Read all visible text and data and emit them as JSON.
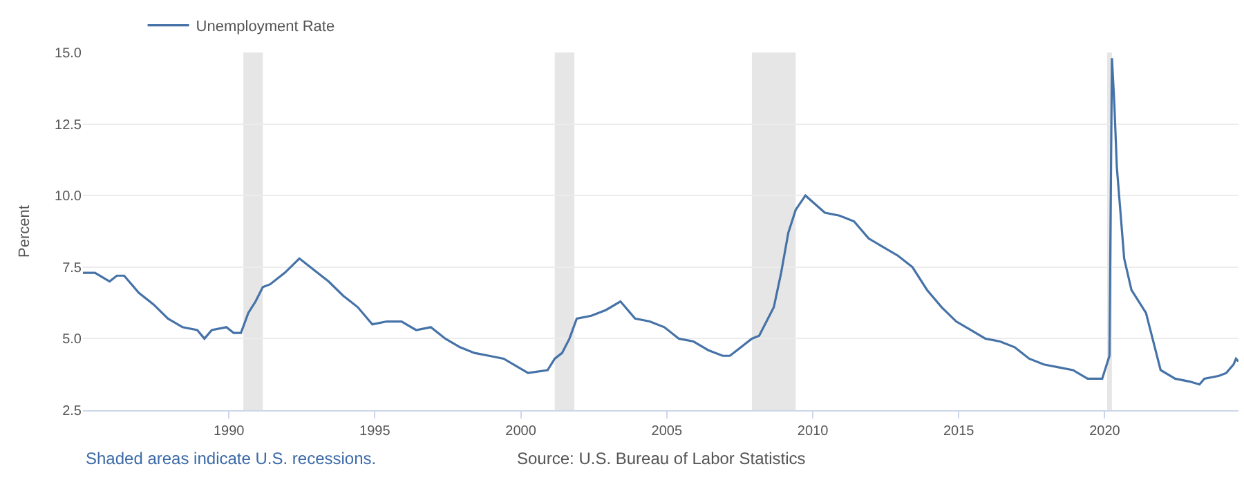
{
  "chart_data": {
    "type": "line",
    "ylabel": "Percent",
    "legend": "top left",
    "grid": "y",
    "marker": "none",
    "line_style": "solid",
    "xlim": [
      "1985-01",
      "2024-08"
    ],
    "xticks": [
      "1990",
      "1995",
      "2000",
      "2005",
      "2010",
      "2015",
      "2020"
    ],
    "ylim": [
      2.5,
      15.0
    ],
    "yticks": [
      {
        "value": 2.5,
        "label": "2.5"
      },
      {
        "value": 5.0,
        "label": "5.0"
      },
      {
        "value": 7.5,
        "label": "7.5"
      },
      {
        "value": 10.0,
        "label": "10.0"
      },
      {
        "value": 12.5,
        "label": "12.5"
      },
      {
        "value": 15.0,
        "label": "15.0"
      }
    ],
    "x": [
      "1985-01",
      "1985-06",
      "1985-12",
      "1986-03",
      "1986-06",
      "1986-12",
      "1987-06",
      "1987-12",
      "1988-06",
      "1988-12",
      "1989-03",
      "1989-06",
      "1989-12",
      "1990-03",
      "1990-06",
      "1990-09",
      "1990-12",
      "1991-03",
      "1991-06",
      "1991-12",
      "1992-06",
      "1992-12",
      "1993-06",
      "1993-12",
      "1994-06",
      "1994-12",
      "1995-06",
      "1995-12",
      "1996-06",
      "1996-12",
      "1997-06",
      "1997-12",
      "1998-06",
      "1998-12",
      "1999-06",
      "1999-12",
      "2000-04",
      "2000-12",
      "2001-03",
      "2001-06",
      "2001-09",
      "2001-12",
      "2002-06",
      "2002-12",
      "2003-06",
      "2003-12",
      "2004-06",
      "2004-12",
      "2005-06",
      "2005-12",
      "2006-06",
      "2006-12",
      "2007-03",
      "2007-06",
      "2007-12",
      "2008-03",
      "2008-06",
      "2008-09",
      "2008-12",
      "2009-03",
      "2009-06",
      "2009-10",
      "2010-06",
      "2010-12",
      "2011-06",
      "2011-12",
      "2012-06",
      "2012-12",
      "2013-06",
      "2013-12",
      "2014-06",
      "2014-12",
      "2015-06",
      "2015-12",
      "2016-06",
      "2016-12",
      "2017-06",
      "2017-12",
      "2018-06",
      "2018-12",
      "2019-06",
      "2019-12",
      "2020-03",
      "2020-04",
      "2020-05",
      "2020-06",
      "2020-09",
      "2020-12",
      "2021-06",
      "2021-12",
      "2022-06",
      "2022-12",
      "2023-04",
      "2023-06",
      "2023-12",
      "2024-03",
      "2024-06",
      "2024-07",
      "2024-08"
    ],
    "series": [
      {
        "name": "Unemployment Rate",
        "color": "#4572a7",
        "values": [
          7.3,
          7.3,
          7.0,
          7.2,
          7.2,
          6.6,
          6.2,
          5.7,
          5.4,
          5.3,
          5.0,
          5.3,
          5.4,
          5.2,
          5.2,
          5.9,
          6.3,
          6.8,
          6.9,
          7.3,
          7.8,
          7.4,
          7.0,
          6.5,
          6.1,
          5.5,
          5.6,
          5.6,
          5.3,
          5.4,
          5.0,
          4.7,
          4.5,
          4.4,
          4.3,
          4.0,
          3.8,
          3.9,
          4.3,
          4.5,
          5.0,
          5.7,
          5.8,
          6.0,
          6.3,
          5.7,
          5.6,
          5.4,
          5.0,
          4.9,
          4.6,
          4.4,
          4.4,
          4.6,
          5.0,
          5.1,
          5.6,
          6.1,
          7.3,
          8.7,
          9.5,
          10.0,
          9.4,
          9.3,
          9.1,
          8.5,
          8.2,
          7.9,
          7.5,
          6.7,
          6.1,
          5.6,
          5.3,
          5.0,
          4.9,
          4.7,
          4.3,
          4.1,
          4.0,
          3.9,
          3.6,
          3.6,
          4.4,
          14.8,
          13.2,
          11.0,
          7.8,
          6.7,
          5.9,
          3.9,
          3.6,
          3.5,
          3.4,
          3.6,
          3.7,
          3.8,
          4.1,
          4.3,
          4.2
        ]
      }
    ],
    "bands": [
      {
        "axis": "x",
        "from": "1990-07",
        "to": "1991-03",
        "color": "#e6e6e6"
      },
      {
        "axis": "x",
        "from": "2001-03",
        "to": "2001-11",
        "color": "#e6e6e6"
      },
      {
        "axis": "x",
        "from": "2007-12",
        "to": "2009-06",
        "color": "#e6e6e6"
      },
      {
        "axis": "x",
        "from": "2020-02",
        "to": "2020-04",
        "color": "#e6e6e6"
      }
    ],
    "annotations": [
      "Shaded areas indicate U.S. recessions.",
      "Source: U.S. Bureau of Labor Statistics"
    ]
  }
}
